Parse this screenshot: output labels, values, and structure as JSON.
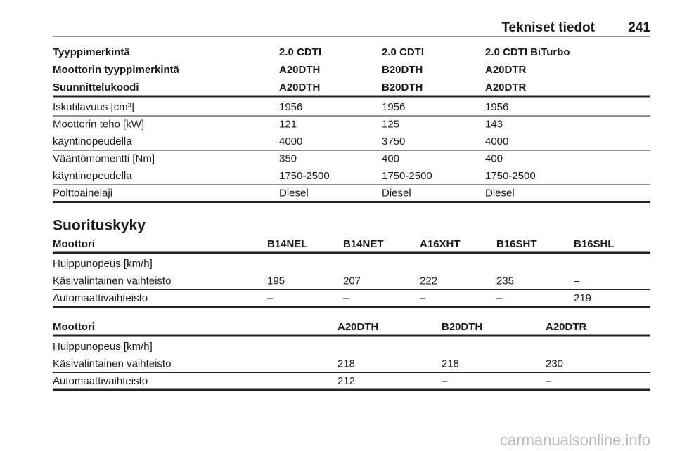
{
  "header": {
    "title": "Tekniset tiedot",
    "page": "241"
  },
  "tables": [
    {
      "head": [
        [
          "Tyyppimerkintä",
          "2.0 CDTI",
          "2.0 CDTI",
          "2.0 CDTI BiTurbo"
        ],
        [
          "Moottorin tyyppimerkintä",
          "A20DTH",
          "B20DTH",
          "A20DTR"
        ],
        [
          "Suunnittelukoodi",
          "A20DTH",
          "B20DTH",
          "A20DTR"
        ]
      ],
      "groups": [
        [
          [
            "Iskutilavuus [cm³]",
            "1956",
            "1956",
            "1956"
          ]
        ],
        [
          [
            "Moottorin teho [kW]",
            "121",
            "125",
            "143"
          ],
          [
            "käyntinopeudella",
            "4000",
            "3750",
            "4000"
          ]
        ],
        [
          [
            "Vääntömomentti [Nm]",
            "350",
            "400",
            "400"
          ],
          [
            "käyntinopeudella",
            "1750-2500",
            "1750-2500",
            "1750-2500"
          ]
        ],
        [
          [
            "Polttoainelaji",
            "Diesel",
            "Diesel",
            "Diesel"
          ]
        ]
      ]
    },
    {
      "head": [
        [
          "Moottori",
          "B14NEL",
          "B14NET",
          "A16XHT",
          "B16SHT",
          "B16SHL"
        ]
      ],
      "groups": [
        [
          [
            "Huippunopeus [km/h]"
          ],
          [
            "Käsivalintainen vaihteisto",
            "195",
            "207",
            "222",
            "235",
            "–"
          ]
        ],
        [
          [
            "Automaattivaihteisto",
            "–",
            "–",
            "–",
            "–",
            "219"
          ]
        ]
      ]
    },
    {
      "head": [
        [
          "Moottori",
          "A20DTH",
          "B20DTH",
          "A20DTR"
        ]
      ],
      "groups": [
        [
          [
            "Huippunopeus [km/h]"
          ],
          [
            "Käsivalintainen vaihteisto",
            "218",
            "218",
            "230"
          ]
        ],
        [
          [
            "Automaattivaihteisto",
            "212",
            "–",
            "–"
          ]
        ]
      ]
    }
  ],
  "section_title": "Suorituskyky",
  "watermark": "carmanualsonline.info"
}
